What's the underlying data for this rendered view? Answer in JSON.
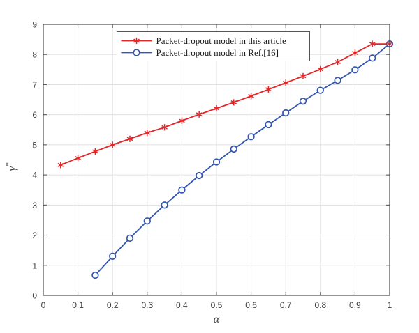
{
  "figure": {
    "background": "#ffffff"
  },
  "chart_data": {
    "type": "line",
    "title": "",
    "xlabel": "α",
    "ylabel": "γ*",
    "xlim": [
      0,
      1
    ],
    "ylim": [
      0,
      9
    ],
    "xticks": [
      0,
      0.1,
      0.2,
      0.3,
      0.4,
      0.5,
      0.6,
      0.7,
      0.8,
      0.9,
      1
    ],
    "xtick_labels": [
      "0",
      "0.1",
      "0.2",
      "0.3",
      "0.4",
      "0.5",
      "0.6",
      "0.7",
      "0.8",
      "0.9",
      "1"
    ],
    "yticks": [
      0,
      1,
      2,
      3,
      4,
      5,
      6,
      7,
      8,
      9
    ],
    "ytick_labels": [
      "0",
      "1",
      "2",
      "3",
      "4",
      "5",
      "6",
      "7",
      "8",
      "9"
    ],
    "grid": true,
    "legend_position": "top-center-inside",
    "series": [
      {
        "name": "Packet-dropout model in this article",
        "color": "#e42528",
        "marker": "asterisk",
        "x": [
          0.05,
          0.1,
          0.15,
          0.2,
          0.25,
          0.3,
          0.35,
          0.4,
          0.45,
          0.5,
          0.55,
          0.6,
          0.65,
          0.7,
          0.75,
          0.8,
          0.85,
          0.9,
          0.95,
          1.0
        ],
        "y": [
          4.33,
          4.56,
          4.78,
          5.0,
          5.2,
          5.4,
          5.58,
          5.8,
          6.01,
          6.21,
          6.41,
          6.62,
          6.84,
          7.06,
          7.28,
          7.51,
          7.75,
          8.05,
          8.35,
          8.35
        ]
      },
      {
        "name": "Packet-dropout model in Ref.[16]",
        "color": "#3355b0",
        "marker": "circle",
        "x": [
          0.15,
          0.2,
          0.25,
          0.3,
          0.35,
          0.4,
          0.45,
          0.5,
          0.55,
          0.6,
          0.65,
          0.7,
          0.75,
          0.8,
          0.85,
          0.9,
          0.95,
          1.0
        ],
        "y": [
          0.67,
          1.3,
          1.9,
          2.47,
          3.0,
          3.5,
          3.98,
          4.43,
          4.86,
          5.27,
          5.67,
          6.06,
          6.45,
          6.81,
          7.14,
          7.49,
          7.88,
          8.35
        ]
      }
    ],
    "theme": {
      "axis_color": "#4d4d4d",
      "grid_color": "#e0e0e0",
      "tick_label_color": "#3f3f3f",
      "legend_border_color": "#555555",
      "legend_background": "#ffffff",
      "plot_background": "#ffffff"
    }
  }
}
